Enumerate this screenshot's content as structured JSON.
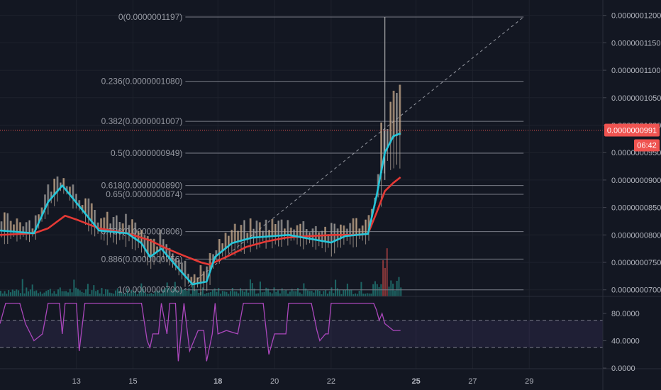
{
  "chart_data": [
    {
      "type": "line",
      "title": "",
      "price_axis": {
        "ticks": [
          "0.0000001200",
          "0.0000001150",
          "0.0000001100",
          "0.0000001050",
          "0.0000001000",
          "0.0000000950",
          "0.0000000900",
          "0.0000000850",
          "0.0000000800",
          "0.0000000750",
          "0.0000000700"
        ],
        "ylim": [
          6.88e-08,
          1.228e-07
        ]
      },
      "current_price": {
        "label": "0.0000000991",
        "countdown": "06:42",
        "value": 9.91e-08,
        "color": "#ef5350"
      },
      "fibonacci": {
        "line_color": "#787b86",
        "levels": [
          {
            "label": "0(0.0000001197)",
            "value": 1.197e-07
          },
          {
            "label": "0.236(0.0000001080)",
            "value": 1.08e-07
          },
          {
            "label": "0.382(0.0000001007)",
            "value": 1.007e-07
          },
          {
            "label": "0.5(0.0000000949)",
            "value": 9.49e-08
          },
          {
            "label": "0.618(0.0000000890)",
            "value": 8.9e-08
          },
          {
            "label": "0.65(0.0000000874)",
            "value": 8.74e-08
          },
          {
            "label": "0.786(0.0000000806)",
            "value": 8.06e-08
          },
          {
            "label": "0.886(0.0000000756)",
            "value": 7.56e-08
          },
          {
            "label": "1(0.0000000700)",
            "value": 7e-08
          }
        ]
      },
      "x_axis": {
        "ticks": [
          "13",
          "15",
          "18",
          "20",
          "22",
          "25",
          "27",
          "29"
        ],
        "bold_ticks": [
          "18",
          "25"
        ],
        "domain_days": [
          10.3,
          31.6
        ]
      },
      "trend_line": {
        "start": {
          "day": 16.8,
          "value": 7e-08
        },
        "end": {
          "day": 28.8,
          "value": 1.197e-07
        },
        "style": "dashed"
      },
      "series": [
        {
          "name": "",
          "color": "#e53935",
          "points": [
            [
              10.3,
              8e-08
            ],
            [
              11.5,
              8.03e-08
            ],
            [
              12.0,
              8.12e-08
            ],
            [
              12.6,
              8.35e-08
            ],
            [
              13.0,
              8.28e-08
            ],
            [
              13.8,
              8.12e-08
            ],
            [
              14.8,
              8.03e-08
            ],
            [
              15.6,
              7.9e-08
            ],
            [
              16.2,
              7.75e-08
            ],
            [
              16.8,
              7.62e-08
            ],
            [
              17.4,
              7.5e-08
            ],
            [
              17.7,
              7.46e-08
            ],
            [
              18.3,
              7.6e-08
            ],
            [
              19.0,
              7.78e-08
            ],
            [
              19.7,
              7.88e-08
            ],
            [
              20.4,
              7.95e-08
            ],
            [
              21.2,
              7.98e-08
            ],
            [
              22.1,
              8e-08
            ],
            [
              23.0,
              8e-08
            ],
            [
              23.3,
              8.02e-08
            ],
            [
              23.6,
              8.4e-08
            ],
            [
              23.9,
              8.8e-08
            ],
            [
              24.2,
              8.95e-08
            ],
            [
              24.45,
              9.05e-08
            ]
          ]
        },
        {
          "name": "",
          "color": "#26c6da",
          "points": [
            [
              10.3,
              8.08e-08
            ],
            [
              11.5,
              8.03e-08
            ],
            [
              12.0,
              8.6e-08
            ],
            [
              12.5,
              8.9e-08
            ],
            [
              12.9,
              8.65e-08
            ],
            [
              13.8,
              8.08e-08
            ],
            [
              14.8,
              8.03e-08
            ],
            [
              15.3,
              7.85e-08
            ],
            [
              15.6,
              7.6e-08
            ],
            [
              16.0,
              7.75e-08
            ],
            [
              16.5,
              7.45e-08
            ],
            [
              17.1,
              7.1e-08
            ],
            [
              17.6,
              7.15e-08
            ],
            [
              17.9,
              7.6e-08
            ],
            [
              18.5,
              7.85e-08
            ],
            [
              19.2,
              7.95e-08
            ],
            [
              20.5,
              8e-08
            ],
            [
              22.0,
              7.86e-08
            ],
            [
              22.5,
              7.98e-08
            ],
            [
              23.3,
              8.02e-08
            ],
            [
              23.6,
              8.7e-08
            ],
            [
              23.9,
              9.5e-08
            ],
            [
              24.2,
              9.8e-08
            ],
            [
              24.45,
              9.85e-08
            ]
          ]
        }
      ],
      "volume": {
        "color": "#26a69a",
        "highlight_color": "#ef5350"
      }
    },
    {
      "type": "line",
      "title": "",
      "y_axis": {
        "ticks": [
          "80.0000",
          "40.0000",
          "0.0000"
        ],
        "ylim": [
          -1,
          105
        ]
      },
      "bands": {
        "upper": 70,
        "lower": 30,
        "fill": "#7e57c2"
      },
      "series": [
        {
          "name": "",
          "color": "#ab47bc",
          "points": [
            [
              10.3,
              65
            ],
            [
              10.5,
              95
            ],
            [
              11.0,
              95
            ],
            [
              11.2,
              65
            ],
            [
              11.5,
              40
            ],
            [
              11.8,
              50
            ],
            [
              12.0,
              95
            ],
            [
              12.4,
              95
            ],
            [
              12.5,
              50
            ],
            [
              12.6,
              95
            ],
            [
              13.0,
              95
            ],
            [
              13.1,
              25
            ],
            [
              13.3,
              95
            ],
            [
              15.0,
              95
            ],
            [
              15.3,
              95
            ],
            [
              15.5,
              40
            ],
            [
              15.6,
              30
            ],
            [
              15.7,
              50
            ],
            [
              15.9,
              50
            ],
            [
              16.0,
              95
            ],
            [
              16.2,
              50
            ],
            [
              16.3,
              95
            ],
            [
              16.5,
              95
            ],
            [
              16.6,
              10
            ],
            [
              16.8,
              95
            ],
            [
              17.0,
              25
            ],
            [
              17.3,
              55
            ],
            [
              17.5,
              55
            ],
            [
              17.6,
              10
            ],
            [
              17.8,
              50
            ],
            [
              17.9,
              95
            ],
            [
              18.0,
              50
            ],
            [
              18.3,
              55
            ],
            [
              18.7,
              50
            ],
            [
              18.9,
              95
            ],
            [
              19.6,
              95
            ],
            [
              19.8,
              20
            ],
            [
              20.0,
              50
            ],
            [
              20.4,
              50
            ],
            [
              20.5,
              95
            ],
            [
              21.3,
              95
            ],
            [
              21.5,
              55
            ],
            [
              21.6,
              40
            ],
            [
              21.8,
              50
            ],
            [
              21.9,
              50
            ],
            [
              22.0,
              95
            ],
            [
              22.4,
              95
            ],
            [
              22.6,
              95
            ],
            [
              23.5,
              95
            ],
            [
              23.6,
              85
            ],
            [
              23.7,
              70
            ],
            [
              23.8,
              80
            ],
            [
              23.9,
              65
            ],
            [
              24.2,
              55
            ],
            [
              24.45,
              55
            ]
          ]
        }
      ]
    }
  ]
}
